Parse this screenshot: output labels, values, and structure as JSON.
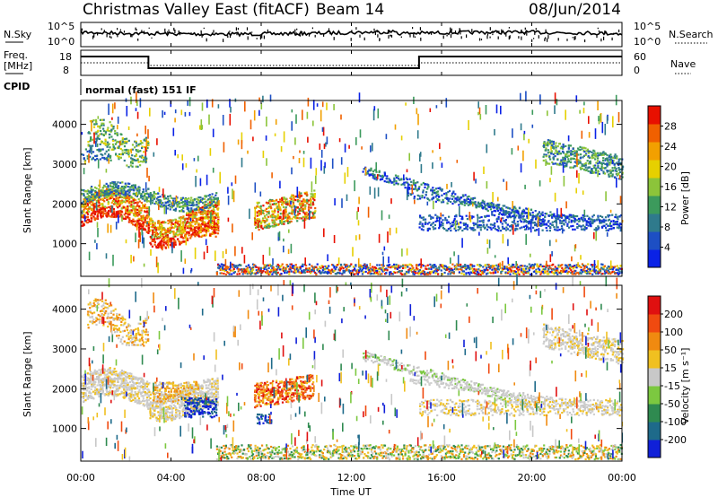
{
  "header": {
    "title": "Christmas Valley East (fitACF)",
    "beam": "Beam 14",
    "date": "08/Jun/2014"
  },
  "top_panels": {
    "nsky_label": "N.Sky",
    "nsky_ticks": [
      "10^5",
      "10^0"
    ],
    "nsearch_label": "N.Search",
    "nsearch_ticks": [
      "10^5",
      "10^0"
    ],
    "freq_label_1": "Freq.",
    "freq_label_2": "[MHz]",
    "freq_ticks": [
      "18",
      "8"
    ],
    "nave_label": "Nave",
    "nave_ticks": [
      "60",
      "0"
    ],
    "cpid_label": "CPID",
    "cpid_value": "normal (fast) 151 IF"
  },
  "chart_data": [
    {
      "type": "heatmap",
      "name": "power",
      "ylabel": "Slant Range [km]",
      "yticks": [
        "4000",
        "3000",
        "2000",
        "1000"
      ],
      "ylim": [
        180,
        4600
      ],
      "colorbar_label": "Power [dB]",
      "colorbar_ticks": [
        "28",
        "24",
        "20",
        "16",
        "12",
        "8",
        "4"
      ],
      "colors": [
        "#0a22e6",
        "#1d4fc4",
        "#2f7a8c",
        "#3c9a5c",
        "#8cc43a",
        "#e6d000",
        "#f2a000",
        "#f06000",
        "#e81000"
      ]
    },
    {
      "type": "heatmap",
      "name": "velocity",
      "ylabel": "Slant Range [km]",
      "yticks": [
        "4000",
        "3000",
        "2000",
        "1000"
      ],
      "ylim": [
        180,
        4600
      ],
      "colorbar_label": "Velocity [m s⁻¹]",
      "colorbar_ticks": [
        "200",
        "100",
        "50",
        "15",
        "-15",
        "-50",
        "-100",
        "-200"
      ],
      "colors": [
        "#1020d8",
        "#1e6a8a",
        "#2f8a50",
        "#7cc840",
        "#c8c8c8",
        "#f0c020",
        "#f08a10",
        "#f04a10",
        "#e01010"
      ]
    }
  ],
  "x_axis": {
    "label": "Time UT",
    "ticks": [
      "00:00",
      "04:00",
      "08:00",
      "12:00",
      "16:00",
      "20:00",
      "00:00"
    ]
  }
}
